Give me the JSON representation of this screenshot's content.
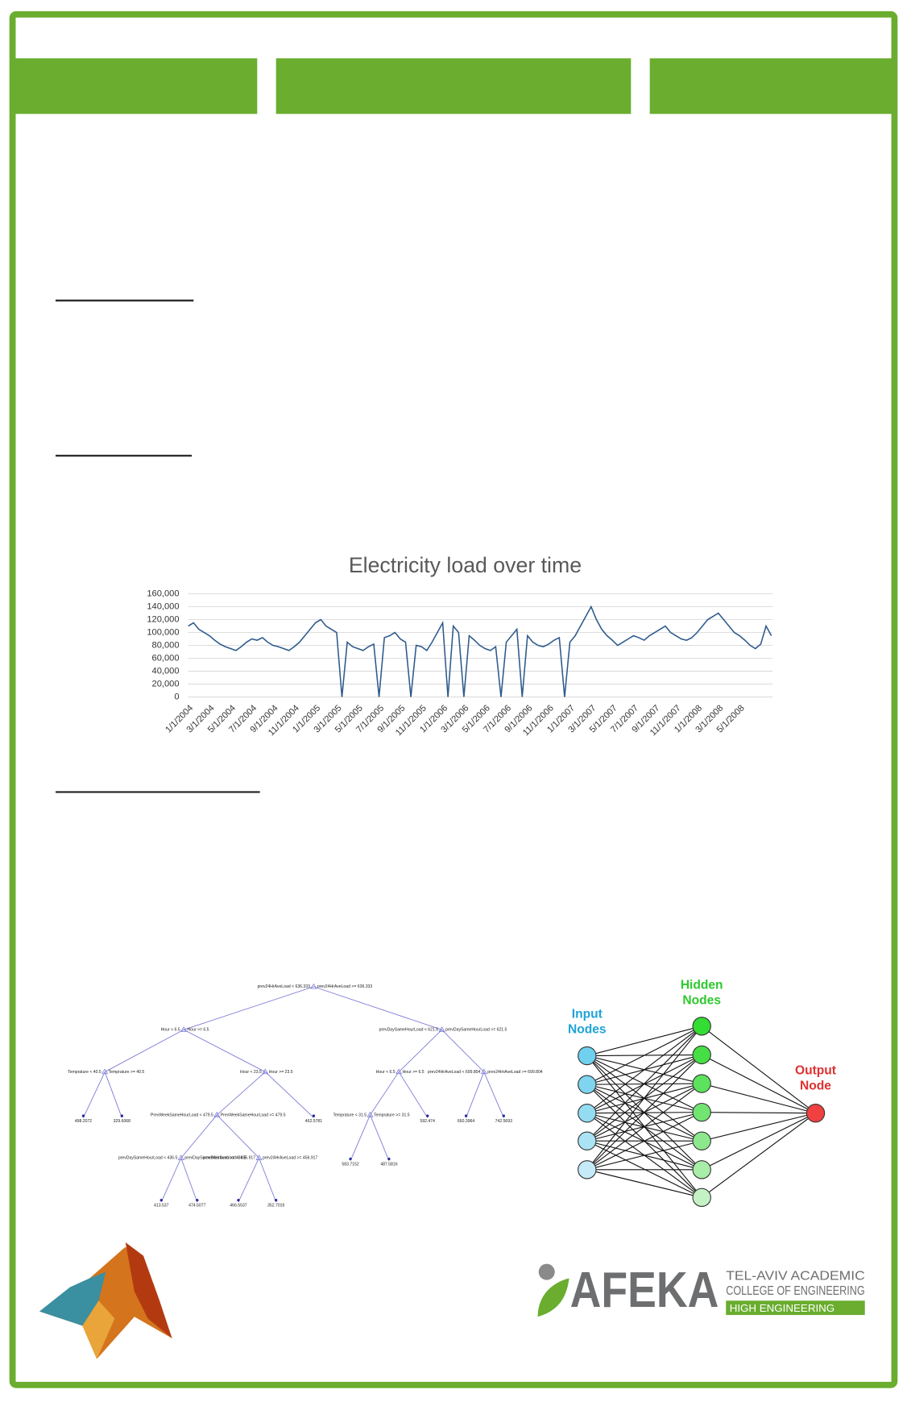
{
  "chart": {
    "type": "line",
    "title": "Electricity load over time",
    "color": "#2e5a8c",
    "grid": true,
    "ylim": [
      0,
      160000
    ],
    "yticks": [
      {
        "value": 0,
        "label": "0"
      },
      {
        "value": 20000,
        "label": "20,000"
      },
      {
        "value": 40000,
        "label": "40,000"
      },
      {
        "value": 60000,
        "label": "60,000"
      },
      {
        "value": 80000,
        "label": "80,000"
      },
      {
        "value": 100000,
        "label": "100,000"
      },
      {
        "value": 120000,
        "label": "120,000"
      },
      {
        "value": 140000,
        "label": "140,000"
      },
      {
        "value": 160000,
        "label": "160,000"
      }
    ],
    "categories": [
      "1/1/2004",
      null,
      null,
      null,
      "3/1/2004",
      null,
      null,
      null,
      "5/1/2004",
      null,
      null,
      null,
      "7/1/2004",
      null,
      null,
      null,
      "9/1/2004",
      null,
      null,
      null,
      "11/1/2004",
      null,
      null,
      null,
      "1/1/2005",
      null,
      null,
      null,
      "3/1/2005",
      null,
      null,
      null,
      "5/1/2005",
      null,
      null,
      null,
      "7/1/2005",
      null,
      null,
      null,
      "9/1/2005",
      null,
      null,
      null,
      "11/1/2005",
      null,
      null,
      null,
      "1/1/2006",
      null,
      null,
      null,
      "3/1/2006",
      null,
      null,
      null,
      "5/1/2006",
      null,
      null,
      null,
      "7/1/2006",
      null,
      null,
      null,
      "9/1/2006",
      null,
      null,
      null,
      "11/1/2006",
      null,
      null,
      null,
      "1/1/2007",
      null,
      null,
      null,
      "3/1/2007",
      null,
      null,
      null,
      "5/1/2007",
      null,
      null,
      null,
      "7/1/2007",
      null,
      null,
      null,
      "9/1/2007",
      null,
      null,
      null,
      "11/1/2007",
      null,
      null,
      null,
      "1/1/2008",
      null,
      null,
      null,
      "3/1/2008",
      null,
      null,
      null,
      "5/1/2008",
      null,
      null,
      null,
      null,
      null,
      null
    ],
    "values": [
      110000,
      115000,
      105000,
      100000,
      95000,
      88000,
      82000,
      78000,
      75000,
      72000,
      78000,
      85000,
      90000,
      88000,
      92000,
      85000,
      80000,
      78000,
      75000,
      72000,
      78000,
      85000,
      95000,
      105000,
      115000,
      120000,
      110000,
      105000,
      100000,
      0,
      85000,
      78000,
      75000,
      72000,
      78000,
      82000,
      0,
      92000,
      95000,
      100000,
      90000,
      85000,
      0,
      80000,
      78000,
      72000,
      85000,
      100000,
      115000,
      0,
      110000,
      100000,
      0,
      95000,
      88000,
      80000,
      75000,
      72000,
      78000,
      0,
      85000,
      95000,
      105000,
      0,
      95000,
      85000,
      80000,
      78000,
      82000,
      88000,
      92000,
      0,
      85000,
      95000,
      110000,
      125000,
      140000,
      120000,
      105000,
      95000,
      88000,
      80000,
      85000,
      90000,
      95000,
      92000,
      88000,
      95000,
      100000,
      105000,
      110000,
      100000,
      95000,
      90000,
      88000,
      92000,
      100000,
      110000,
      120000,
      125000,
      130000,
      120000,
      110000,
      100000,
      95000,
      88000,
      80000,
      75000,
      82000,
      110000,
      95000
    ]
  },
  "tree": {
    "splits": [
      {
        "left": "prev24HrAveLoad < 636.333",
        "right": "prev24HrAveLoad >= 636.333"
      },
      {
        "left": "Hour < 6.5",
        "right": "Hour >= 6.5"
      },
      {
        "left": "prevDaySameHourLoad < 621.5",
        "right": "prevDaySameHourLoad >= 621.5"
      },
      {
        "left": "Temprature < 40.5",
        "right": "Temprature >= 40.5"
      },
      {
        "left": "Hour < 23.5",
        "right": "Hour >= 23.5"
      },
      {
        "left": "Hour < 6.5",
        "right": "Hour >= 6.5"
      },
      {
        "left": "prev24HrAveLoad < 699.804",
        "right": "prev24HrAveLoad >= 699.804"
      },
      {
        "left": "PrevWeekSameHourLoad < 479.5",
        "right": "PrevWeekSameHourLoad >= 479.5"
      },
      {
        "left": "Temprature < 31.5",
        "right": "Temprature >= 31.5"
      },
      {
        "left": "prevDaySameHourLoad < 436.5",
        "right": "prevDaySameHourLoad >= 436.5"
      },
      {
        "left": "prev24HrAveLoad < 456.917",
        "right": "prev24HrAveLoad >= 456.917"
      }
    ],
    "leaves": [
      "498.2072",
      "329.6068",
      "462.5781",
      "592.474",
      "660.3964",
      "742.5693",
      "583.7152",
      "487.5816",
      "413.537",
      "474.5077",
      "466.5537",
      "352.7016"
    ]
  },
  "network": {
    "input": "Input Nodes",
    "hidden": "Hidden Nodes",
    "output": "Output Node"
  },
  "logo": {
    "name": "AFEKA",
    "line1": "TEL-AVIV ACADEMIC",
    "line2": "COLLEGE OF ENGINEERING",
    "tagline": "HIGH ENGINEERING"
  }
}
